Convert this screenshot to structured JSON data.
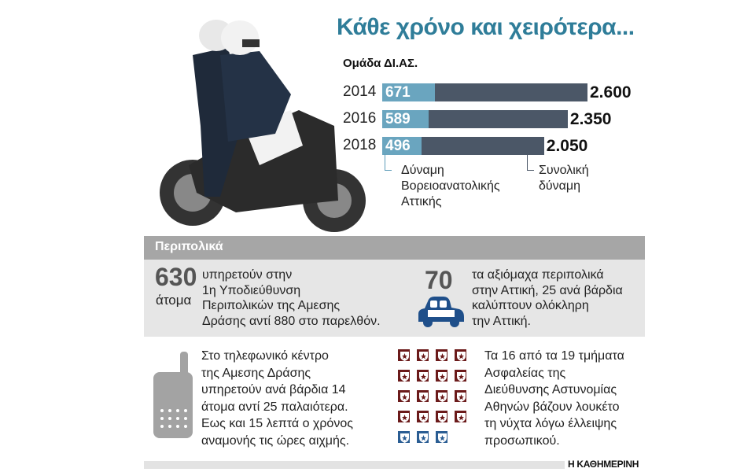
{
  "title": "Κάθε χρόνο και χειρότερα...",
  "chart_data": {
    "type": "bar",
    "title": "Ομάδα ΔΙ.ΑΣ.",
    "categories": [
      "2014",
      "2016",
      "2018"
    ],
    "series": [
      {
        "name": "Δύναμη Βορειοανατολικής Αττικής",
        "values": [
          671,
          589,
          496
        ],
        "labels": [
          "671",
          "589",
          "496"
        ],
        "color": "#6aa5bf"
      },
      {
        "name": "Συνολική δύναμη",
        "values": [
          2600,
          2350,
          2050
        ],
        "labels": [
          "2.600",
          "2.350",
          "2.050"
        ],
        "color": "#4b5767"
      }
    ],
    "legend": {
      "ne_lines": [
        "Δύναμη",
        "Βορειοανατολικής",
        "Αττικής"
      ],
      "total_lines": [
        "Συνολική",
        "δύναμη"
      ]
    }
  },
  "section": {
    "header": "Περιπολικά",
    "fact1": {
      "number": "630",
      "unit": "άτομα",
      "lines": [
        "υπηρετούν στην",
        "1η Υποδιεύθυνση",
        "Περιπολικών της Αμεσης",
        "Δράσης αντί 880 στο παρελθόν."
      ]
    },
    "fact2": {
      "number": "70",
      "icon": "police-car-icon",
      "lines": [
        "τα αξιόμαχα περιπολικά",
        "στην Αττική, 25 ανά βάρδια",
        "καλύπτουν ολόκληρη",
        "την Αττική."
      ]
    },
    "fact3": {
      "icon": "phone-icon",
      "lines": [
        "Στο τηλεφωνικό κέντρο",
        "της Αμεσης Δράσης",
        "υπηρετούν ανά βάρδια 14",
        "άτομα αντί 25 παλαιότερα.",
        "Εως και 15 λεπτά ο χρόνος",
        "αναμονής τις ώρες αιχμής."
      ]
    },
    "fact4": {
      "closed": 16,
      "total": 19,
      "closed_color": "#6b1a1a",
      "open_color": "#2a5d93",
      "lines": [
        "Τα 16 από τα 19 τμήματα",
        "Ασφαλείας της",
        "Διεύθυνσης Αστυνομίας",
        "Αθηνών βάζουν λουκέτο",
        "τη νύχτα λόγω έλλειψης",
        "προσωπικού."
      ]
    }
  },
  "brand": "Η ΚΑΘΗΜΕΡΙΝΗ"
}
